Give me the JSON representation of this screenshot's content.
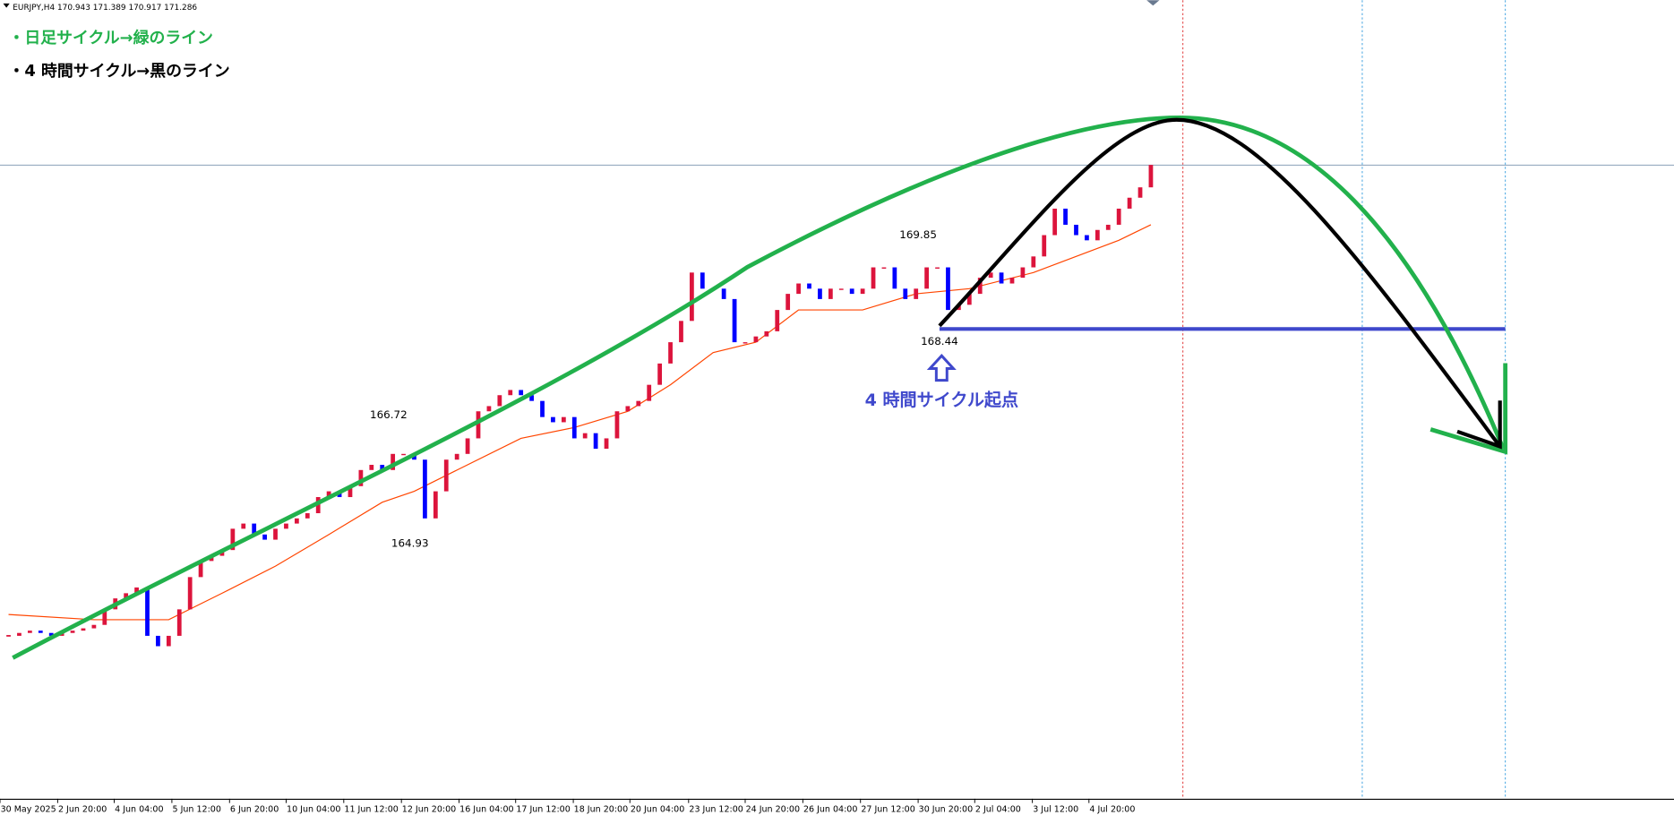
{
  "header": "EURJPY,H4  170.943 171.389 170.917 171.286",
  "notes": [
    "・日足サイクル→緑のライン",
    "・4 時間サイクル→黒のライン"
  ],
  "chart_data": {
    "type": "candlestick",
    "close": [
      163.11,
      163.16,
      163.2,
      163.16,
      163.11,
      163.16,
      163.2,
      163.24,
      163.3,
      163.57,
      163.76,
      163.85,
      163.95,
      163.11,
      162.93,
      163.11,
      163.57,
      164.13,
      164.41,
      164.5,
      164.6,
      164.97,
      165.06,
      164.87,
      164.78,
      164.97,
      165.06,
      165.15,
      165.24,
      165.52,
      165.62,
      165.52,
      165.71,
      165.99,
      166.08,
      165.99,
      166.27,
      166.27,
      166.17,
      165.15,
      165.62,
      166.17,
      166.27,
      166.54,
      167.01,
      167.1,
      167.29,
      167.38,
      167.29,
      167.19,
      166.91,
      166.82,
      166.91,
      166.54,
      166.63,
      166.36,
      166.54,
      167.01,
      167.1,
      167.19,
      167.47,
      167.84,
      168.21,
      168.58,
      169.42,
      169.14,
      169.14,
      168.96,
      168.21,
      168.21,
      168.31,
      168.4,
      168.77,
      169.05,
      169.23,
      169.14,
      168.96,
      169.14,
      169.14,
      169.05,
      169.14,
      169.51,
      169.51,
      169.14,
      168.96,
      169.14,
      169.51,
      169.51,
      168.77,
      168.86,
      169.05,
      169.33,
      169.42,
      169.23,
      169.33,
      169.51,
      169.7,
      170.07,
      170.53,
      170.25,
      170.07,
      169.98,
      170.16,
      170.25,
      170.53,
      170.72,
      170.9,
      171.29
    ],
    "up_color": "#dc143c",
    "down_color": "#0000ff",
    "ma": {
      "x": [
        0,
        8,
        15,
        20,
        25,
        30,
        35,
        38,
        42,
        48,
        53,
        58,
        62,
        66,
        70,
        74,
        80,
        85,
        90,
        96,
        100,
        104,
        107
      ],
      "values": [
        163.48,
        163.39,
        163.39,
        163.85,
        164.32,
        164.87,
        165.43,
        165.62,
        165.99,
        166.54,
        166.73,
        167.01,
        167.47,
        168.03,
        168.21,
        168.77,
        168.77,
        169.05,
        169.14,
        169.42,
        169.7,
        169.98,
        170.25
      ],
      "color": "#ff4500"
    },
    "xlim": [
      -0.8,
      156
    ],
    "ylim": [
      160.28,
      174.15
    ],
    "xticks": [
      {
        "value": -0.8,
        "label": "30 May 2025"
      },
      {
        "value": 4.6,
        "label": "2 Jun 20:00"
      },
      {
        "value": 9.9,
        "label": "4 Jun 04:00"
      },
      {
        "value": 15.3,
        "label": "5 Jun 12:00"
      },
      {
        "value": 20.7,
        "label": "6 Jun 20:00"
      },
      {
        "value": 26,
        "label": "10 Jun 04:00"
      },
      {
        "value": 31.4,
        "label": "11 Jun 12:00"
      },
      {
        "value": 36.8,
        "label": "12 Jun 20:00"
      },
      {
        "value": 42.2,
        "label": "16 Jun 04:00"
      },
      {
        "value": 47.5,
        "label": "17 Jun 12:00"
      },
      {
        "value": 52.9,
        "label": "18 Jun 20:00"
      },
      {
        "value": 58.2,
        "label": "20 Jun 04:00"
      },
      {
        "value": 63.7,
        "label": "23 Jun 12:00"
      },
      {
        "value": 69,
        "label": "24 Jun 20:00"
      },
      {
        "value": 74.4,
        "label": "26 Jun 04:00"
      },
      {
        "value": 79.8,
        "label": "27 Jun 12:00"
      },
      {
        "value": 85.2,
        "label": "30 Jun 20:00"
      },
      {
        "value": 90.5,
        "label": "2 Jul 04:00"
      },
      {
        "value": 95.9,
        "label": "3 Jul 12:00"
      },
      {
        "value": 101.2,
        "label": "4 Jul 20:00"
      }
    ],
    "price_labels": [
      {
        "x": 35.6,
        "value": 166.72,
        "position": "above"
      },
      {
        "x": 37.6,
        "value": 164.93,
        "position": "below"
      },
      {
        "x": 85.2,
        "value": 169.85,
        "position": "above"
      },
      {
        "x": 87.2,
        "value": 168.44,
        "position": "below"
      }
    ],
    "current_price": 171.286,
    "support": {
      "x": [
        87.2,
        140.2
      ],
      "value": 168.44,
      "color": "#3f48cc"
    },
    "annotation": "4 時間サイクル起点"
  }
}
